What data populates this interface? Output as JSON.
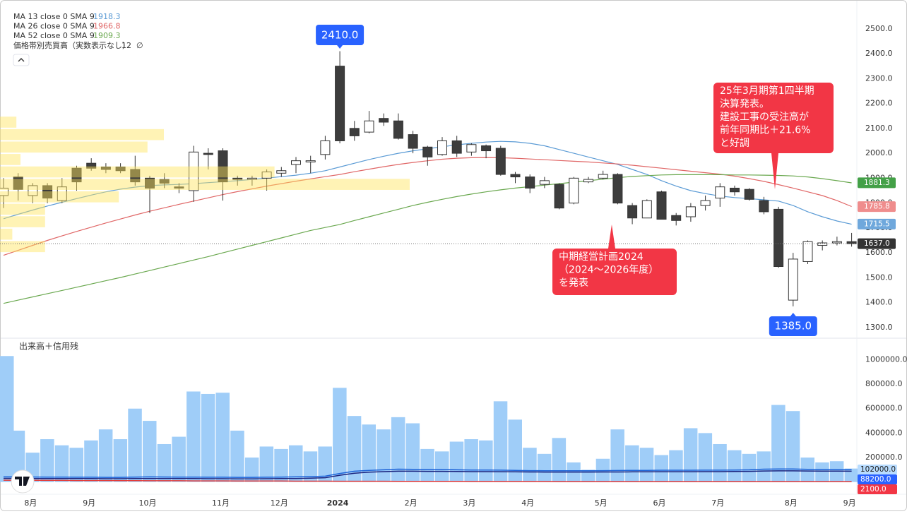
{
  "chart_data": {
    "type": "candlestick",
    "legend": [],
    "ma_series": [
      {
        "name": "MA 13 close 0 SMA 9",
        "legend_value": 1918.3,
        "color": "#5b9bd5",
        "values": [
          1737,
          1755,
          1772,
          1788,
          1803,
          1818,
          1832,
          1845,
          1856,
          1864,
          1870,
          1873,
          1875,
          1878,
          1882,
          1886,
          1890,
          1895,
          1900,
          1906,
          1912,
          1920,
          1930,
          1945,
          1960,
          1975,
          1988,
          2000,
          2010,
          2018,
          2026,
          2034,
          2040,
          2045,
          2048,
          2046,
          2040,
          2030,
          2015,
          2000,
          1985,
          1970,
          1955,
          1935,
          1915,
          1890,
          1868,
          1850,
          1838,
          1828,
          1822,
          1818,
          1813,
          1808,
          1790,
          1765,
          1745,
          1728,
          1715
        ]
      },
      {
        "name": "MA 26 close 0 SMA 9",
        "legend_value": 1966.8,
        "color": "#e06666",
        "values": [
          1590,
          1610,
          1630,
          1650,
          1668,
          1686,
          1703,
          1720,
          1736,
          1752,
          1767,
          1781,
          1795,
          1808,
          1821,
          1834,
          1846,
          1857,
          1868,
          1878,
          1888,
          1897,
          1906,
          1915,
          1926,
          1936,
          1946,
          1955,
          1963,
          1970,
          1976,
          1980,
          1982,
          1983,
          1982,
          1980,
          1977,
          1974,
          1971,
          1968,
          1965,
          1961,
          1957,
          1952,
          1946,
          1940,
          1934,
          1928,
          1922,
          1916,
          1908,
          1898,
          1887,
          1874,
          1860,
          1845,
          1830,
          1810,
          1786
        ]
      },
      {
        "name": "MA 52 close 0 SMA 9",
        "legend_value": 1909.3,
        "color": "#6aa84f",
        "values": [
          1397,
          1410,
          1423,
          1436,
          1449,
          1462,
          1475,
          1488,
          1501,
          1515,
          1529,
          1543,
          1557,
          1571,
          1585,
          1600,
          1615,
          1630,
          1645,
          1660,
          1675,
          1690,
          1702,
          1714,
          1730,
          1745,
          1760,
          1775,
          1790,
          1803,
          1815,
          1826,
          1836,
          1845,
          1853,
          1860,
          1866,
          1872,
          1878,
          1884,
          1890,
          1896,
          1902,
          1907,
          1910,
          1913,
          1914,
          1914,
          1914,
          1914,
          1913,
          1913,
          1912,
          1911,
          1909,
          1905,
          1898,
          1890,
          1881
        ]
      }
    ],
    "profile_title": "価格帯別売買高（実数表示なし）",
    "profile_rows": 12,
    "profile_symbol": "∅",
    "profile": {
      "bins": [
        1600,
        1650,
        1700,
        1750,
        1800,
        1850,
        1900,
        1950,
        2000,
        2050,
        2100,
        2150
      ],
      "values": [
        11,
        3,
        11,
        11,
        29,
        100,
        67,
        5,
        36,
        40,
        4
      ],
      "color": "#ffe55c"
    },
    "categories": [
      null,
      null,
      "8月",
      null,
      null,
      null,
      "9月",
      null,
      null,
      null,
      "10月",
      null,
      null,
      null,
      null,
      "11月",
      null,
      null,
      null,
      "12月",
      null,
      null,
      null,
      "2024",
      null,
      null,
      null,
      null,
      "2月",
      null,
      null,
      null,
      "3月",
      null,
      null,
      null,
      "4月",
      null,
      null,
      null,
      null,
      "5月",
      null,
      null,
      null,
      "6月",
      null,
      null,
      null,
      "7月",
      null,
      null,
      null,
      null,
      "8月",
      null,
      null,
      null,
      "9月"
    ],
    "open": [
      1830,
      1905,
      1830,
      1870,
      1810,
      1940,
      1960,
      1945,
      1945,
      1935,
      1900,
      1895,
      1865,
      1850,
      2000,
      2010,
      1900,
      1895,
      1900,
      1920,
      1955,
      1965,
      1995,
      2350,
      2100,
      2085,
      2140,
      2130,
      2075,
      2025,
      1995,
      2050,
      2005,
      2030,
      2020,
      1915,
      1905,
      1875,
      1875,
      1800,
      1885,
      1900,
      1915,
      1790,
      1740,
      1845,
      1750,
      1745,
      1790,
      1820,
      1860,
      1855,
      1810,
      1775,
      1410,
      1565,
      1630,
      1640,
      1645
    ],
    "high": [
      1900,
      1920,
      1880,
      1880,
      1900,
      1950,
      1980,
      1960,
      1960,
      1990,
      1910,
      1920,
      1880,
      2030,
      2020,
      2020,
      1910,
      1910,
      1935,
      1945,
      1985,
      1990,
      2070,
      2410,
      2130,
      2170,
      2160,
      2160,
      2090,
      2030,
      2065,
      2070,
      2040,
      2035,
      2030,
      1925,
      1915,
      1905,
      1880,
      1905,
      1905,
      1930,
      1920,
      1800,
      1815,
      1850,
      1760,
      1800,
      1830,
      1880,
      1870,
      1860,
      1825,
      1785,
      1600,
      1650,
      1650,
      1665,
      1680
    ],
    "low": [
      1780,
      1810,
      1800,
      1800,
      1800,
      1850,
      1930,
      1920,
      1920,
      1870,
      1760,
      1860,
      1840,
      1805,
      1935,
      1810,
      1870,
      1870,
      1850,
      1905,
      1920,
      1920,
      1975,
      2040,
      2050,
      2080,
      2110,
      2055,
      2000,
      1950,
      1990,
      1985,
      1990,
      1980,
      1910,
      1880,
      1840,
      1860,
      1775,
      1795,
      1880,
      1895,
      1795,
      1715,
      1740,
      1735,
      1710,
      1725,
      1770,
      1785,
      1830,
      1810,
      1755,
      1540,
      1385,
      1555,
      1610,
      1630,
      1625
    ],
    "close": [
      1860,
      1855,
      1870,
      1820,
      1865,
      1885,
      1940,
      1935,
      1930,
      1885,
      1860,
      1880,
      1860,
      2005,
      1995,
      1885,
      1895,
      1900,
      1925,
      1930,
      1970,
      1970,
      2050,
      2050,
      2070,
      2130,
      2125,
      2060,
      2020,
      1985,
      2050,
      2000,
      2035,
      2010,
      1915,
      1905,
      1860,
      1890,
      1780,
      1900,
      1895,
      1915,
      1800,
      1740,
      1810,
      1735,
      1730,
      1785,
      1810,
      1865,
      1845,
      1815,
      1765,
      1545,
      1575,
      1645,
      1640,
      1645,
      1637
    ],
    "up_color": "#ffffff",
    "down_color": "#3d3d3d",
    "edge_color": "#333333",
    "ylim": [
      1260,
      2610
    ],
    "yticks": [
      {
        "value": 1300,
        "label": "1300.0"
      },
      {
        "value": 1400,
        "label": "1400.0"
      },
      {
        "value": 1500,
        "label": "1500.0"
      },
      {
        "value": 1600,
        "label": "1600.0"
      },
      {
        "value": 1700,
        "label": "1700.0"
      },
      {
        "value": 1800,
        "label": "1800.0"
      },
      {
        "value": 1900,
        "label": "1900.0"
      },
      {
        "value": 2000,
        "label": "2000.0"
      },
      {
        "value": 2100,
        "label": "2100.0"
      },
      {
        "value": 2200,
        "label": "2200.0"
      },
      {
        "value": 2300,
        "label": "2300.0"
      },
      {
        "value": 2400,
        "label": "2400.0"
      },
      {
        "value": 2500,
        "label": "2500.0"
      }
    ],
    "price_badges": [
      {
        "value": 1881.3,
        "color": "#43a047"
      },
      {
        "value": 1785.8,
        "color": "#ef8d8d"
      },
      {
        "value": 1715.5,
        "color": "#6fa8dc"
      },
      {
        "value": 1637,
        "label": "1637.0",
        "color": "#333333"
      }
    ],
    "high_label": {
      "value": 2410,
      "label": "2410.0"
    },
    "low_label": {
      "value": 1385,
      "label": "1385.0"
    },
    "callouts": [
      {
        "lines": [
          "中期経営計画2024",
          "（2024～2026年度）",
          "を発表"
        ]
      },
      {
        "lines": [
          "25年3月期第1四半期",
          "決算発表。",
          "建設工事の受注高が",
          "前年同期比＋21.6%",
          "と好調"
        ]
      }
    ],
    "volume_title": "出来高＋信用残",
    "volume": [
      1030000,
      420000,
      240000,
      350000,
      300000,
      280000,
      340000,
      430000,
      350000,
      600000,
      500000,
      310000,
      370000,
      740000,
      720000,
      730000,
      420000,
      200000,
      290000,
      270000,
      300000,
      250000,
      290000,
      770000,
      540000,
      470000,
      430000,
      530000,
      480000,
      270000,
      250000,
      330000,
      350000,
      340000,
      660000,
      510000,
      280000,
      230000,
      360000,
      160000,
      100000,
      190000,
      430000,
      300000,
      280000,
      220000,
      260000,
      440000,
      400000,
      310000,
      260000,
      230000,
      250000,
      630000,
      580000,
      200000,
      160000,
      170000,
      110000
    ],
    "volume_color": "#9fcdf8",
    "volume_lines": [
      {
        "color": "#1e64d8",
        "values": [
          42000,
          42000,
          41000,
          40000,
          40000,
          39000,
          39000,
          38000,
          38000,
          40000,
          42000,
          41000,
          40000,
          40000,
          39000,
          39000,
          38000,
          38000,
          39000,
          40000,
          42000,
          44000,
          48000,
          70000,
          88000,
          95000,
          100000,
          105000,
          104000,
          103000,
          102000,
          100000,
          98000,
          98000,
          97000,
          95000,
          93000,
          92000,
          92000,
          92000,
          92000,
          93000,
          94000,
          95000,
          95000,
          96000,
          96000,
          96000,
          97000,
          97000,
          98000,
          100000,
          105000,
          106000,
          106000,
          104000,
          103000,
          102000,
          102000
        ],
        "badge": {
          "value": 102000,
          "label": "102000.0"
        },
        "badge_color": "#b8dcff",
        "badge_text": "#1a1a1a"
      },
      {
        "color": "#1a237e",
        "values": [
          30000,
          30000,
          29000,
          29000,
          28000,
          28000,
          28000,
          27000,
          27000,
          28000,
          29000,
          29000,
          28000,
          28000,
          27000,
          27000,
          26000,
          26000,
          27000,
          28000,
          29000,
          31000,
          35000,
          55000,
          72000,
          80000,
          85000,
          88000,
          88000,
          87000,
          87000,
          86000,
          85000,
          85000,
          84000,
          83000,
          82000,
          81000,
          81000,
          81000,
          81000,
          82000,
          82000,
          83000,
          83000,
          84000,
          84000,
          84000,
          85000,
          85000,
          86000,
          87000,
          90000,
          91000,
          91000,
          90000,
          89000,
          88500,
          88200
        ],
        "badge": {
          "value": 88200,
          "label": "88200.0"
        },
        "badge_color": "#2962ff",
        "badge_text": "#ffffff"
      },
      {
        "color": "#e53935",
        "values": [
          15000,
          14000,
          14000,
          13000,
          13000,
          12000,
          12000,
          12000,
          11000,
          11000,
          10000,
          10000,
          10000,
          9000,
          9000,
          9000,
          8000,
          8000,
          8000,
          8000,
          7000,
          7000,
          7000,
          6000,
          6000,
          6000,
          6000,
          5000,
          5000,
          5000,
          5000,
          5000,
          4000,
          4000,
          4000,
          4000,
          4000,
          4000,
          3000,
          3000,
          3000,
          3000,
          3000,
          3000,
          3000,
          3000,
          3000,
          3000,
          3000,
          3000,
          3000,
          2500,
          2500,
          2500,
          2500,
          2200,
          2200,
          2100,
          2100
        ],
        "badge": {
          "value": 2100,
          "label": "2100.0"
        },
        "badge_color": "#f23645",
        "badge_text": "#ffffff"
      }
    ],
    "vol_ylim": [
      -100000,
      1170000
    ],
    "vol_yticks": [
      {
        "value": 200000,
        "label": "200000.0"
      },
      {
        "value": 400000,
        "label": "400000.0"
      },
      {
        "value": 600000,
        "label": "600000.0"
      },
      {
        "value": 800000,
        "label": "800000.0"
      },
      {
        "value": 1000000,
        "label": "1000000.0"
      }
    ],
    "grid": false
  }
}
